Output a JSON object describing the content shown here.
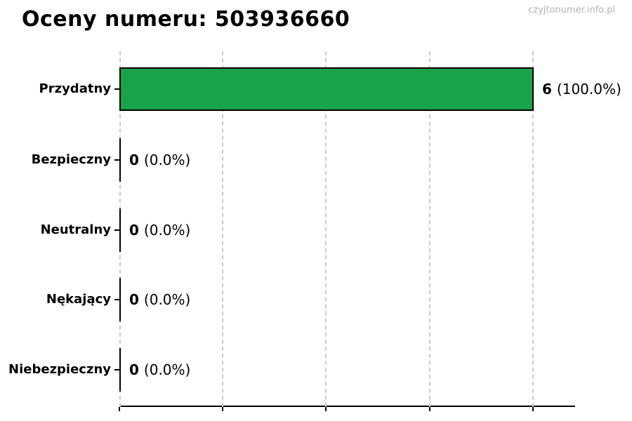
{
  "header": {
    "title": "Oceny numeru: 503936660",
    "watermark": "czyjtonumer.info.pl"
  },
  "chart_data": {
    "type": "bar",
    "orientation": "horizontal",
    "title": "Oceny numeru: 503936660",
    "categories": [
      "Przydatny",
      "Bezpieczny",
      "Neutralny",
      "Nękający",
      "Niebezpieczny"
    ],
    "values": [
      6,
      0,
      0,
      0,
      0
    ],
    "percentages": [
      100.0,
      0.0,
      0.0,
      0.0,
      0.0
    ],
    "bar_labels": [
      "6 (100.0%)",
      "0 (0.0%)",
      "0 (0.0%)",
      "0 (0.0%)",
      "0 (0.0%)"
    ],
    "xlim": [
      0,
      6.6
    ],
    "x_ticks": [
      0,
      1.5,
      3,
      4.5,
      6
    ],
    "x_tick_labels_visible": false,
    "y_tick_labels_visible": true,
    "grid": {
      "axis": "x",
      "style": "dashed",
      "color": "#cccccc"
    },
    "legend": "none",
    "bar_color": "#1aa34a",
    "bar_edge_color": "#000000"
  },
  "rows": [
    {
      "label": "Przydatny",
      "value": "6",
      "pct": "(100.0%)"
    },
    {
      "label": "Bezpieczny",
      "value": "0",
      "pct": "(0.0%)"
    },
    {
      "label": "Neutralny",
      "value": "0",
      "pct": "(0.0%)"
    },
    {
      "label": "Nękający",
      "value": "0",
      "pct": "(0.0%)"
    },
    {
      "label": "Niebezpieczny",
      "value": "0",
      "pct": "(0.0%)"
    }
  ]
}
